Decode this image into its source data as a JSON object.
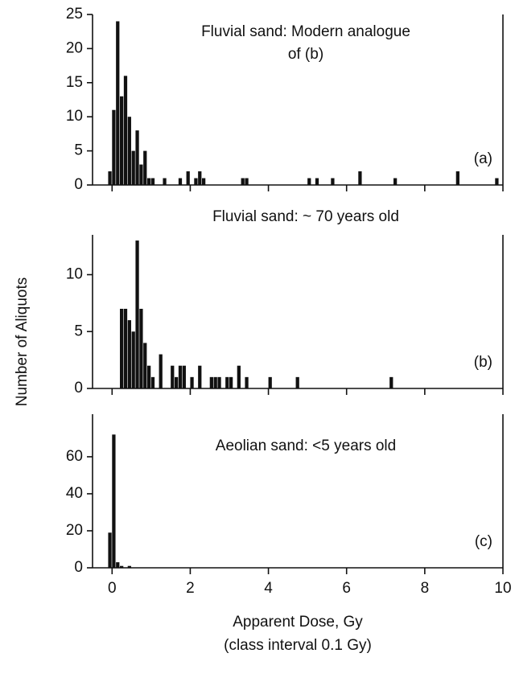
{
  "chart_data": [
    {
      "type": "histogram",
      "title": [
        "Fluvial sand: Modern analogue",
        "of (b)"
      ],
      "panel_label": "(a)",
      "color": "#111111",
      "bins": [
        -0.1,
        0,
        0.1,
        0.2,
        0.3,
        0.4,
        0.5,
        0.6,
        0.7,
        0.8,
        0.9,
        1.0,
        1.1,
        1.2,
        1.3,
        1.4,
        1.5,
        1.6,
        1.7,
        1.8,
        1.9,
        2.0,
        2.1,
        2.2,
        2.3,
        2.4,
        2.5,
        2.6,
        2.7,
        2.8,
        2.9,
        3.0,
        3.1,
        3.2,
        3.3,
        3.4,
        3.5,
        3.6,
        3.7,
        3.8,
        3.9,
        4.0,
        4.1,
        4.2,
        4.3,
        4.4,
        4.5,
        4.6,
        4.7,
        4.8,
        4.9,
        5.0,
        5.1,
        5.2,
        5.3,
        5.4,
        5.5,
        5.6,
        5.7,
        5.8,
        5.9,
        6.0,
        6.1,
        6.2,
        6.3,
        6.4,
        6.5,
        6.6,
        6.7,
        6.8,
        6.9,
        7.0,
        7.1,
        7.2,
        7.3,
        7.4,
        7.5,
        7.6,
        7.7,
        7.8,
        7.9,
        8.0,
        8.1,
        8.2,
        8.3,
        8.4,
        8.5,
        8.6,
        8.7,
        8.8,
        8.9,
        9.0,
        9.1,
        9.2,
        9.3,
        9.4,
        9.5,
        9.6,
        9.7,
        9.8,
        9.9,
        10.0
      ],
      "values": [
        2,
        11,
        24,
        13,
        16,
        10,
        5,
        8,
        3,
        5,
        1,
        1,
        0,
        0,
        1,
        0,
        0,
        0,
        1,
        0,
        2,
        0,
        1,
        2,
        1,
        0,
        0,
        0,
        0,
        0,
        0,
        0,
        0,
        0,
        1,
        1,
        0,
        0,
        0,
        0,
        0,
        0,
        0,
        0,
        0,
        0,
        0,
        0,
        0,
        0,
        0,
        1,
        0,
        1,
        0,
        0,
        0,
        1,
        0,
        0,
        0,
        0,
        0,
        0,
        2,
        0,
        0,
        0,
        0,
        0,
        0,
        0,
        0,
        1,
        0,
        0,
        0,
        0,
        0,
        0,
        0,
        0,
        0,
        0,
        0,
        0,
        0,
        0,
        0,
        2,
        0,
        0,
        0,
        0,
        0,
        0,
        0,
        0,
        0,
        1,
        0
      ],
      "xlim": [
        -0.5,
        10
      ],
      "xticks": [
        0,
        2,
        4,
        6,
        8,
        10
      ],
      "xtick_labels": false,
      "ylim": [
        0,
        25
      ],
      "yticks": [
        0,
        5,
        10,
        15,
        20,
        25
      ]
    },
    {
      "type": "histogram",
      "title": [
        "Fluvial sand: ~ 70 years old"
      ],
      "panel_label": "(b)",
      "color": "#111111",
      "ylabel": "Number of Aliquots",
      "bins": [
        0.2,
        0.3,
        0.4,
        0.5,
        0.6,
        0.7,
        0.8,
        0.9,
        1.0,
        1.1,
        1.2,
        1.3,
        1.4,
        1.5,
        1.6,
        1.7,
        1.8,
        1.9,
        2.0,
        2.1,
        2.2,
        2.3,
        2.4,
        2.5,
        2.6,
        2.7,
        2.8,
        2.9,
        3.0,
        3.1,
        3.2,
        3.3,
        3.4,
        3.5,
        3.6,
        3.7,
        3.8,
        3.9,
        4.0,
        4.1,
        4.2,
        4.3,
        4.4,
        4.5,
        4.6,
        4.7,
        4.8,
        4.9,
        5.0,
        5.1,
        5.2,
        5.3,
        5.4,
        5.5,
        5.6,
        5.7,
        5.8,
        5.9,
        6.0,
        6.1,
        6.2,
        6.3,
        6.4,
        6.5,
        6.6,
        6.7,
        6.8,
        6.9,
        7.0,
        7.1,
        7.2
      ],
      "values": [
        7,
        7,
        6,
        5,
        13,
        7,
        4,
        2,
        1,
        0,
        3,
        0,
        0,
        2,
        1,
        2,
        2,
        0,
        1,
        0,
        2,
        0,
        0,
        1,
        1,
        1,
        0,
        1,
        1,
        0,
        2,
        0,
        1,
        0,
        0,
        0,
        0,
        0,
        1,
        0,
        0,
        0,
        0,
        0,
        0,
        1,
        0,
        0,
        0,
        0,
        0,
        0,
        0,
        0,
        0,
        0,
        0,
        0,
        0,
        0,
        0,
        0,
        0,
        0,
        0,
        0,
        0,
        0,
        0,
        1
      ],
      "xlim": [
        -0.5,
        10
      ],
      "xticks": [
        0,
        2,
        4,
        6,
        8,
        10
      ],
      "xtick_labels": false,
      "ylim": [
        0,
        13.5
      ],
      "yticks": [
        0,
        5,
        10
      ]
    },
    {
      "type": "histogram",
      "title": [
        "Aeolian sand: <5 years old"
      ],
      "panel_label": "(c)",
      "color": "#111111",
      "xlabel": [
        "Apparent Dose, Gy",
        "(class interval 0.1 Gy)"
      ],
      "bins": [
        -0.1,
        0,
        0.1,
        0.2,
        0.3,
        0.4,
        0.5
      ],
      "values": [
        19,
        72,
        3,
        1,
        0,
        1
      ],
      "xlim": [
        -0.5,
        10
      ],
      "xticks": [
        0,
        2,
        4,
        6,
        8,
        10
      ],
      "xtick_labels": true,
      "ylim": [
        0,
        83
      ],
      "yticks": [
        0,
        20,
        40,
        60
      ]
    }
  ]
}
